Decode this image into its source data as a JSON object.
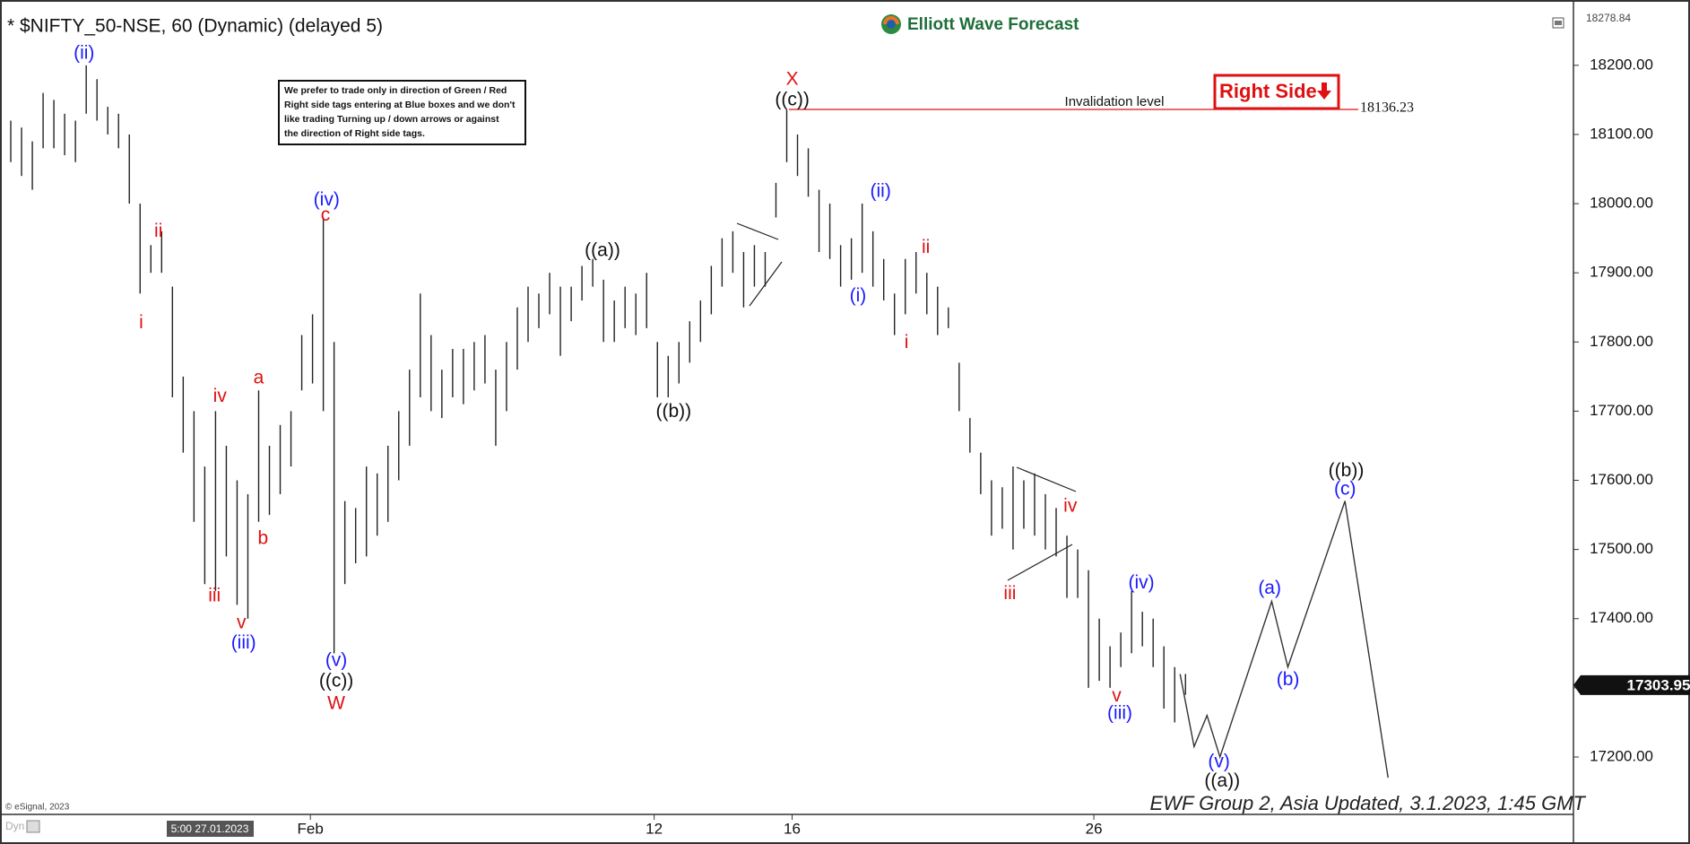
{
  "chart_data": {
    "type": "ohlc",
    "title": "* $NIFTY_50-NSE, 60 (Dynamic) (delayed 5)",
    "brand": "Elliott Wave Forecast",
    "note": [
      "We prefer to trade only in direction of Green / Red",
      "Right side tags entering at Blue boxes and we don't",
      "like trading Turning up / down arrows or against",
      "the direction of Right side tags."
    ],
    "tag": "Right Side",
    "invalidation": {
      "label": "Invalidation level",
      "value": 18136.23
    },
    "top_price": 18278.84,
    "last_price": 17303.95,
    "footer": "EWF Group 2, Asia Updated, 3.1.2023, 1:45 GMT",
    "copyright": "© eSignal, 2023",
    "cursor_time": "5:00 27.01.2023",
    "corner_label": "Dyn",
    "ylim": [
      17117,
      18278.84
    ],
    "yticks": [
      {
        "value": 17200,
        "label": "17200.00"
      },
      {
        "value": 17300,
        "label": "17300.00"
      },
      {
        "value": 17400,
        "label": "17400.00"
      },
      {
        "value": 17500,
        "label": "17500.00"
      },
      {
        "value": 17600,
        "label": "17600.00"
      },
      {
        "value": 17700,
        "label": "17700.00"
      },
      {
        "value": 17800,
        "label": "17800.00"
      },
      {
        "value": 17900,
        "label": "17900.00"
      },
      {
        "value": 18000,
        "label": "18000.00"
      },
      {
        "value": 18100,
        "label": "18100.00"
      },
      {
        "value": 18200,
        "label": "18200.00"
      }
    ],
    "xlim": [
      0,
      146
    ],
    "xticks": [
      {
        "value": 28.8,
        "label": "Feb"
      },
      {
        "value": 60.7,
        "label": "12"
      },
      {
        "value": 73.5,
        "label": "16"
      },
      {
        "value": 101.5,
        "label": "26"
      }
    ],
    "bar_color": "#222222",
    "bars": {
      "x": [
        1,
        2,
        3,
        4,
        5,
        6,
        7,
        8,
        9,
        10,
        11,
        12,
        13,
        14,
        15,
        16,
        17,
        18,
        19,
        20,
        21,
        22,
        23,
        24,
        25,
        26,
        27,
        28,
        29,
        30,
        31,
        32,
        33,
        34,
        35,
        36,
        37,
        38,
        39,
        40,
        41,
        42,
        43,
        44,
        45,
        46,
        47,
        48,
        49,
        50,
        51,
        52,
        53,
        54,
        55,
        56,
        57,
        58,
        59,
        60,
        61,
        62,
        63,
        64,
        65,
        66,
        67,
        68,
        69,
        70,
        71,
        72,
        73,
        74,
        75,
        76,
        77,
        78,
        79,
        80,
        81,
        82,
        83,
        84,
        85,
        86,
        87,
        88,
        89,
        90,
        91,
        92,
        93,
        94,
        95,
        96,
        97,
        98,
        99,
        100,
        101,
        102,
        103,
        104,
        105,
        106,
        107,
        108,
        109,
        110
      ],
      "high": [
        18120,
        18110,
        18090,
        18160,
        18150,
        18130,
        18120,
        18200,
        18180,
        18140,
        18130,
        18100,
        18000,
        17940,
        17960,
        17880,
        17750,
        17700,
        17620,
        17700,
        17650,
        17600,
        17580,
        17730,
        17650,
        17680,
        17700,
        17810,
        17840,
        17980,
        17800,
        17570,
        17560,
        17620,
        17610,
        17650,
        17700,
        17760,
        17870,
        17810,
        17760,
        17790,
        17790,
        17800,
        17810,
        17760,
        17800,
        17850,
        17880,
        17870,
        17900,
        17880,
        17880,
        17910,
        17920,
        17890,
        17860,
        17880,
        17870,
        17900,
        17800,
        17780,
        17800,
        17830,
        17860,
        17910,
        17950,
        17960,
        17930,
        17940,
        17930,
        18030,
        18136,
        18100,
        18080,
        18020,
        18000,
        17940,
        17950,
        18000,
        17960,
        17920,
        17870,
        17920,
        17930,
        17900,
        17880,
        17850,
        17770,
        17690,
        17640,
        17600,
        17590,
        17620,
        17600,
        17610,
        17580,
        17560,
        17520,
        17500,
        17470,
        17400,
        17360,
        17380,
        17440,
        17410,
        17400,
        17360,
        17330,
        17320
      ],
      "low": [
        18060,
        18040,
        18020,
        18080,
        18080,
        18070,
        18060,
        18130,
        18120,
        18100,
        18080,
        18000,
        17870,
        17900,
        17900,
        17720,
        17640,
        17540,
        17450,
        17440,
        17490,
        17420,
        17400,
        17540,
        17550,
        17580,
        17620,
        17730,
        17740,
        17700,
        17350,
        17450,
        17480,
        17490,
        17520,
        17540,
        17600,
        17650,
        17720,
        17700,
        17690,
        17720,
        17710,
        17730,
        17740,
        17650,
        17700,
        17760,
        17800,
        17820,
        17840,
        17780,
        17830,
        17860,
        17880,
        17800,
        17800,
        17820,
        17810,
        17820,
        17720,
        17720,
        17740,
        17770,
        17800,
        17840,
        17880,
        17900,
        17850,
        17880,
        17880,
        17980,
        18060,
        18040,
        18010,
        17930,
        17920,
        17880,
        17890,
        17900,
        17880,
        17860,
        17810,
        17840,
        17870,
        17840,
        17810,
        17820,
        17700,
        17640,
        17580,
        17520,
        17530,
        17500,
        17530,
        17520,
        17500,
        17490,
        17430,
        17430,
        17300,
        17310,
        17300,
        17330,
        17350,
        17360,
        17330,
        17270,
        17250,
        17290
      ]
    },
    "projection": {
      "color": "#333333",
      "x": [
        109.5,
        110.8,
        112,
        113.2,
        118,
        119.5,
        124.8,
        128.8
      ],
      "y": [
        17320,
        17215,
        17260,
        17200,
        17425,
        17330,
        17570,
        17170
      ]
    },
    "wave_labels": [
      {
        "text": "(ii)",
        "color": "#1a1aff"
      },
      {
        "text": "ii",
        "color": "#e01010"
      },
      {
        "text": "i",
        "color": "#e01010"
      },
      {
        "text": "iv",
        "color": "#e01010"
      },
      {
        "text": "a",
        "color": "#e01010"
      },
      {
        "text": "iii",
        "color": "#e01010"
      },
      {
        "text": "v",
        "color": "#e01010"
      },
      {
        "text": "(iii)",
        "color": "#1a1aff"
      },
      {
        "text": "b",
        "color": "#e01010"
      },
      {
        "text": "(iv)",
        "color": "#1a1aff"
      },
      {
        "text": "c",
        "color": "#e01010"
      },
      {
        "text": "(v)",
        "color": "#1a1aff"
      },
      {
        "text": "((c))",
        "color": "#111111"
      },
      {
        "text": "W",
        "color": "#e01010"
      },
      {
        "text": "((a))",
        "color": "#111111"
      },
      {
        "text": "((b))",
        "color": "#111111"
      },
      {
        "text": "X",
        "color": "#e01010"
      },
      {
        "text": "((c))",
        "color": "#111111"
      },
      {
        "text": "(ii)",
        "color": "#1a1aff"
      },
      {
        "text": "(i)",
        "color": "#1a1aff"
      },
      {
        "text": "ii",
        "color": "#e01010"
      },
      {
        "text": "i",
        "color": "#e01010"
      },
      {
        "text": "iv",
        "color": "#e01010"
      },
      {
        "text": "iii",
        "color": "#e01010"
      },
      {
        "text": "(iv)",
        "color": "#1a1aff"
      },
      {
        "text": "v",
        "color": "#e01010"
      },
      {
        "text": "(iii)",
        "color": "#1a1aff"
      },
      {
        "text": "(v)",
        "color": "#1a1aff"
      },
      {
        "text": "((a))",
        "color": "#111111"
      },
      {
        "text": "(a)",
        "color": "#1a1aff"
      },
      {
        "text": "(b)",
        "color": "#1a1aff"
      },
      {
        "text": "((b))",
        "color": "#111111"
      },
      {
        "text": "(c)",
        "color": "#1a1aff"
      }
    ]
  }
}
